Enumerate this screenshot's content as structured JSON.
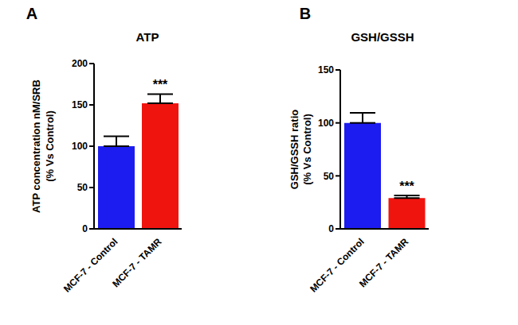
{
  "chart_data": [
    {
      "type": "bar",
      "panel_label": "A",
      "title": "ATP",
      "ylabel": [
        "ATP concentration nM/SRB",
        "(% Vs Control)"
      ],
      "categories": [
        "MCF-7 - Control",
        "MCF-7 - TAMR"
      ],
      "values": [
        100,
        152
      ],
      "errors": [
        12,
        11
      ],
      "colors": [
        "#1c1cf0",
        "#f0140f"
      ],
      "ylim": [
        0,
        200
      ],
      "yticks": [
        0,
        50,
        100,
        150,
        200
      ],
      "annotations": [
        {
          "category": "MCF-7 - TAMR",
          "text": "***"
        }
      ]
    },
    {
      "type": "bar",
      "panel_label": "B",
      "title": "GSH/GSSH",
      "ylabel": [
        "GSH/GSSH ratio",
        "(% Vs Control)"
      ],
      "categories": [
        "MCF-7 - Control",
        "MCF-7 - TAMR"
      ],
      "values": [
        100,
        29
      ],
      "errors": [
        9.5,
        2.5
      ],
      "colors": [
        "#1c1cf0",
        "#f0140f"
      ],
      "ylim": [
        0,
        150
      ],
      "yticks": [
        0,
        50,
        100,
        150
      ],
      "annotations": [
        {
          "category": "MCF-7 - TAMR",
          "text": "***"
        }
      ]
    }
  ]
}
